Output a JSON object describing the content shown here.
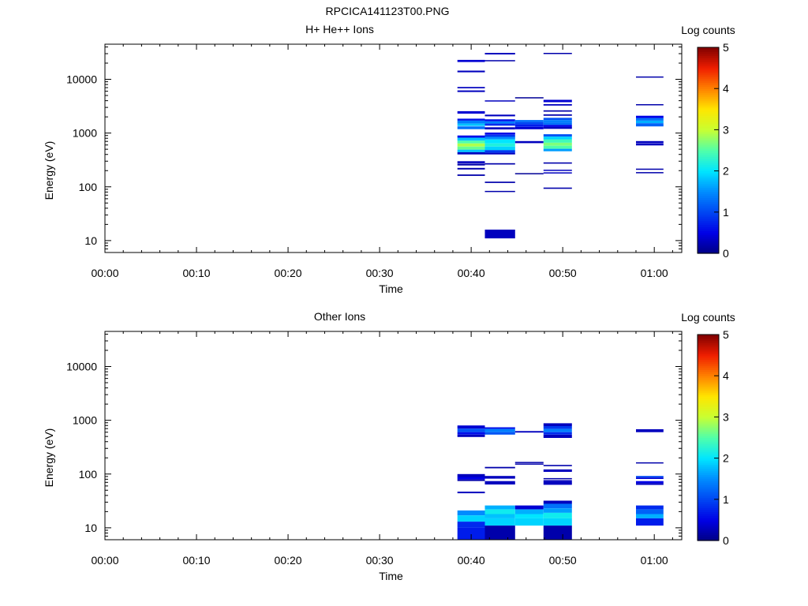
{
  "figure_title": "RPCICA141123T00.PNG",
  "chart_data": [
    {
      "type": "heatmap",
      "title": "H+ He++ Ions",
      "xlabel": "Time",
      "ylabel": "Energy (eV)",
      "xticks": [
        "00:00",
        "00:10",
        "00:20",
        "00:30",
        "00:40",
        "00:50",
        "01:00"
      ],
      "xlim_minutes": [
        0,
        63
      ],
      "yscale": "log",
      "ylim": [
        6,
        45000
      ],
      "yticks": [
        "10",
        "100",
        "1000",
        "10000"
      ],
      "colorbar": {
        "label": "Log counts",
        "ticks": [
          "0",
          "1",
          "2",
          "3",
          "4",
          "5"
        ],
        "range": [
          0,
          5
        ],
        "colormap": "jet"
      },
      "columns": [
        {
          "t0": 38.5,
          "t1": 41.5,
          "cells": [
            [
              21000,
              23000,
              0.4
            ],
            [
              13500,
              14500,
              0.3
            ],
            [
              6800,
              7200,
              0.3
            ],
            [
              5800,
              6200,
              0.3
            ],
            [
              2300,
              2550,
              0.4
            ],
            [
              1700,
              1850,
              0.6
            ],
            [
              1500,
              1700,
              1.4
            ],
            [
              1350,
              1500,
              1.8
            ],
            [
              1180,
              1330,
              1.3
            ],
            [
              820,
              900,
              0.6
            ],
            [
              720,
              820,
              1.8
            ],
            [
              640,
              720,
              2.5
            ],
            [
              560,
              640,
              2.9
            ],
            [
              490,
              560,
              2.6
            ],
            [
              440,
              490,
              1.8
            ],
            [
              400,
              440,
              0.3
            ],
            [
              275,
              300,
              0.3
            ],
            [
              250,
              270,
              0.2
            ],
            [
              210,
              225,
              0.2
            ],
            [
              160,
              170,
              0.2
            ]
          ]
        },
        {
          "t0": 41.5,
          "t1": 44.8,
          "cells": [
            [
              29000,
              31000,
              0.3
            ],
            [
              21800,
              22700,
              0.2
            ],
            [
              3850,
              4050,
              0.3
            ],
            [
              2050,
              2200,
              0.3
            ],
            [
              1650,
              1800,
              0.6
            ],
            [
              1500,
              1650,
              1.4
            ],
            [
              1370,
              1500,
              0.8
            ],
            [
              1170,
              1280,
              0.3
            ],
            [
              930,
              1020,
              0.5
            ],
            [
              850,
              930,
              0.9
            ],
            [
              760,
              850,
              1.5
            ],
            [
              640,
              760,
              2.0
            ],
            [
              560,
              640,
              2.2
            ],
            [
              480,
              560,
              1.9
            ],
            [
              430,
              480,
              0.9
            ],
            [
              400,
              430,
              0.3
            ],
            [
              260,
              275,
              0.2
            ],
            [
              118,
              125,
              0.2
            ],
            [
              80,
              84,
              0.2
            ],
            [
              11,
              16,
              0.3
            ]
          ]
        },
        {
          "t0": 44.8,
          "t1": 47.9,
          "cells": [
            [
              4500,
              4650,
              0.1
            ],
            [
              1600,
              1750,
              1.3
            ],
            [
              1450,
              1600,
              1.0
            ],
            [
              1300,
              1450,
              0.7
            ],
            [
              1180,
              1300,
              0.4
            ],
            [
              650,
              710,
              0.3
            ],
            [
              176,
              180,
              0.1
            ]
          ]
        },
        {
          "t0": 47.9,
          "t1": 51.0,
          "cells": [
            [
              29500,
              31000,
              0.2
            ],
            [
              3750,
              4150,
              0.4
            ],
            [
              3250,
              3450,
              0.3
            ],
            [
              2500,
              2650,
              0.2
            ],
            [
              2100,
              2230,
              0.2
            ],
            [
              1750,
              1920,
              1.1
            ],
            [
              1580,
              1750,
              1.4
            ],
            [
              1420,
              1580,
              1.3
            ],
            [
              1300,
              1420,
              0.5
            ],
            [
              1200,
              1300,
              0.3
            ],
            [
              860,
              950,
              1.1
            ],
            [
              760,
              860,
              1.9
            ],
            [
              660,
              760,
              2.4
            ],
            [
              580,
              660,
              2.7
            ],
            [
              510,
              580,
              2.5
            ],
            [
              460,
              510,
              1.6
            ],
            [
              270,
              285,
              0.2
            ],
            [
              198,
              208,
              0.3
            ],
            [
              178,
              186,
              0.3
            ],
            [
              92,
              97,
              0.2
            ]
          ]
        },
        {
          "t0": 58.0,
          "t1": 61.0,
          "cells": [
            [
              10900,
              11300,
              0.2
            ],
            [
              3300,
              3450,
              0.2
            ],
            [
              1900,
              2100,
              0.5
            ],
            [
              1700,
              1900,
              1.3
            ],
            [
              1520,
              1700,
              1.7
            ],
            [
              1330,
              1520,
              1.2
            ],
            [
              660,
              710,
              0.3
            ],
            [
              590,
              650,
              0.3
            ],
            [
              208,
              218,
              0.2
            ],
            [
              180,
              188,
              0.2
            ]
          ]
        }
      ]
    },
    {
      "type": "heatmap",
      "title": "Other Ions",
      "xlabel": "Time",
      "ylabel": "Energy (eV)",
      "xticks": [
        "00:00",
        "00:10",
        "00:20",
        "00:30",
        "00:40",
        "00:50",
        "01:00"
      ],
      "xlim_minutes": [
        0,
        63
      ],
      "yscale": "log",
      "ylim": [
        6,
        45000
      ],
      "yticks": [
        "10",
        "100",
        "1000",
        "10000"
      ],
      "colorbar": {
        "label": "Log counts",
        "ticks": [
          "0",
          "1",
          "2",
          "3",
          "4",
          "5"
        ],
        "range": [
          0,
          5
        ],
        "colormap": "jet"
      },
      "columns": [
        {
          "t0": 38.5,
          "t1": 41.5,
          "cells": [
            [
              700,
              800,
              0.4
            ],
            [
              600,
              700,
              1.1
            ],
            [
              540,
              600,
              0.6
            ],
            [
              490,
              540,
              0.3
            ],
            [
              88,
              100,
              0.3
            ],
            [
              79,
              88,
              0.5
            ],
            [
              74,
              79,
              0.2
            ],
            [
              44,
              47,
              0.3
            ],
            [
              17,
              21,
              1.5
            ],
            [
              13,
              17,
              1.9
            ],
            [
              10,
              13,
              0.8
            ],
            [
              6,
              10,
              0.7
            ]
          ]
        },
        {
          "t0": 41.5,
          "t1": 44.8,
          "cells": [
            [
              690,
              740,
              0.6
            ],
            [
              600,
              690,
              1.4
            ],
            [
              540,
              600,
              1.1
            ],
            [
              128,
              136,
              0.2
            ],
            [
              82,
              92,
              0.3
            ],
            [
              64,
              74,
              0.3
            ],
            [
              22,
              26,
              1.7
            ],
            [
              18,
              22,
              2.1
            ],
            [
              15,
              18,
              1.8
            ],
            [
              11,
              15,
              1.9
            ],
            [
              6,
              11,
              0.2
            ]
          ]
        },
        {
          "t0": 44.8,
          "t1": 47.9,
          "cells": [
            [
              590,
              630,
              0.3
            ],
            [
              160,
              168,
              0.2
            ],
            [
              150,
              157,
              0.2
            ],
            [
              22,
              26,
              0.4
            ],
            [
              18,
              22,
              1.7
            ],
            [
              15,
              18,
              2.0
            ],
            [
              11,
              15,
              1.9
            ]
          ]
        },
        {
          "t0": 47.9,
          "t1": 51.0,
          "cells": [
            [
              780,
              880,
              0.3
            ],
            [
              690,
              780,
              0.9
            ],
            [
              600,
              690,
              1.4
            ],
            [
              540,
              600,
              0.8
            ],
            [
              470,
              540,
              0.3
            ],
            [
              140,
              148,
              0.2
            ],
            [
              110,
              122,
              0.3
            ],
            [
              80,
              84,
              0.2
            ],
            [
              71,
              77,
              0.3
            ],
            [
              63,
              71,
              0.3
            ],
            [
              28,
              32,
              0.3
            ],
            [
              23,
              28,
              1.3
            ],
            [
              19,
              23,
              1.6
            ],
            [
              15,
              19,
              2.1
            ],
            [
              11,
              15,
              1.9
            ],
            [
              6,
              11,
              0.2
            ]
          ]
        },
        {
          "t0": 58.0,
          "t1": 61.0,
          "cells": [
            [
              600,
              680,
              0.3
            ],
            [
              158,
              165,
              0.2
            ],
            [
              86,
              92,
              1.0
            ],
            [
              81,
              86,
              0.4
            ],
            [
              68,
              74,
              0.5
            ],
            [
              63,
              68,
              0.3
            ],
            [
              22,
              26,
              0.8
            ],
            [
              18,
              22,
              1.2
            ],
            [
              15,
              18,
              1.7
            ],
            [
              11,
              15,
              0.7
            ]
          ]
        }
      ]
    }
  ]
}
